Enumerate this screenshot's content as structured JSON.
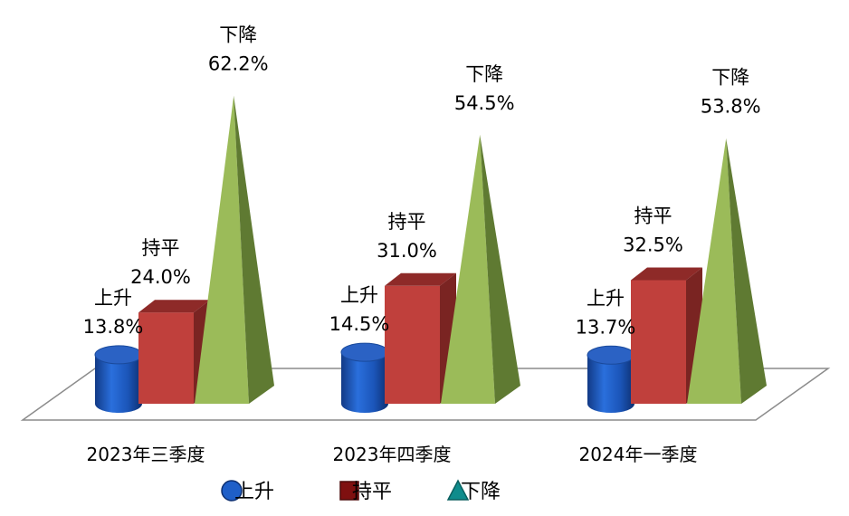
{
  "chart_data": {
    "type": "bar",
    "categories": [
      "2023年三季度",
      "2023年四季度",
      "2024年一季度"
    ],
    "series": [
      {
        "name": "上升",
        "values": [
          13.8,
          14.5,
          13.7
        ],
        "shape": "cylinder",
        "color": "#1F5FC8"
      },
      {
        "name": "持平",
        "values": [
          24.0,
          31.0,
          32.5
        ],
        "shape": "box",
        "color": "#C0403C"
      },
      {
        "name": "下降",
        "values": [
          62.2,
          54.5,
          53.8
        ],
        "shape": "pyramid",
        "color": "#9BBB59"
      }
    ],
    "value_format": "%",
    "ylim": [
      0,
      70
    ],
    "grid": false,
    "legend": "bottom-center",
    "legend_marker_colors": {
      "上升": "#1F5FC8",
      "持平": "#7F1010",
      "下降": "#0F8C8C"
    }
  }
}
